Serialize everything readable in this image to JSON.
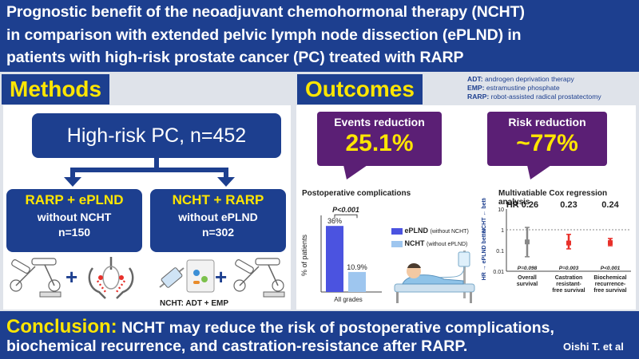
{
  "header": {
    "line1": "Prognostic benefit of the neoadjuvant chemohormonal therapy (NCHT)",
    "line2": "in comparison with extended pelvic lymph node dissection (ePLND) in",
    "line3": "patients with high-risk prostate cancer (PC) treated with RARP"
  },
  "methods": {
    "title": "Methods",
    "main_box": "High-risk PC, n=452",
    "left_box": {
      "line1": "RARP + ePLND",
      "line2": "without NCHT",
      "line3": "n=150"
    },
    "right_box": {
      "line1": "NCHT + RARP",
      "line2": "without ePLND",
      "line3": "n=302"
    },
    "plus_left": "+",
    "plus_right": "+",
    "note": "NCHT: ADT + EMP"
  },
  "outcomes": {
    "title": "Outcomes",
    "abbr": [
      {
        "key": "ADT:",
        "text": " androgen deprivation therapy"
      },
      {
        "key": "EMP:",
        "text": " estramustine phosphate"
      },
      {
        "key": "RARP:",
        "text": " robot-assisted radical prostatectomy"
      }
    ],
    "events": {
      "label": "Events reduction",
      "value": "25.1%"
    },
    "risk": {
      "label": "Risk reduction",
      "value": "~77%"
    }
  },
  "chart_data": [
    {
      "type": "bar",
      "title": "Postoperative complications",
      "categories": [
        "All grades"
      ],
      "series": [
        {
          "name": "ePLND",
          "note": "(without NCHT)",
          "values": [
            36
          ],
          "color": "#4b53e0",
          "label": "36%"
        },
        {
          "name": "NCHT",
          "note": "(without ePLND)",
          "values": [
            10.9
          ],
          "color": "#9ec6ef",
          "label": "10.9%"
        }
      ],
      "ylabel": "% of patients",
      "ylim": [
        0,
        40
      ],
      "annotation": "P<0.001"
    },
    {
      "type": "scatter",
      "title": "Multivatiable Cox regression analysis",
      "categories": [
        "Overall survival",
        "Castration resistant-free survival",
        "Biochemical recurrence-free survival"
      ],
      "category_lines": [
        [
          "Overall",
          "survival"
        ],
        [
          "Castration",
          "resistant-",
          "free survival"
        ],
        [
          "Biochemical",
          "recurrence-",
          "free survival"
        ]
      ],
      "hr": [
        0.26,
        0.23,
        0.24
      ],
      "hr_labels": [
        "HR 0.26",
        "0.23",
        "0.24"
      ],
      "p_values": [
        "P=0.098",
        "P=0.003",
        "P<0.001"
      ],
      "ci_low": [
        0.05,
        0.12,
        0.17
      ],
      "ci_high": [
        1.3,
        0.6,
        0.38
      ],
      "colors": [
        "#888888",
        "#e8302a",
        "#e8302a"
      ],
      "y_scale": "log",
      "ylim": [
        0.01,
        10
      ],
      "yticks": [
        "10",
        "1",
        "0.1",
        "0.01"
      ],
      "ylabel_top": "HR → ePLND better",
      "ylabel_bottom": "NCHT ← better"
    }
  ],
  "conclusion": {
    "label": "Conclusion:",
    "text1": " NCHT may reduce the risk of postoperative complications,",
    "text2": "biochemical recurrence, and castration-resistance after RARP.",
    "author": "Oishi T. et al"
  }
}
